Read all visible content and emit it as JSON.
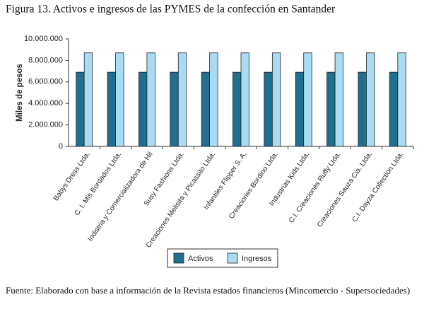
{
  "chart_data": {
    "type": "bar",
    "title": "Figura 13. Activos e ingresos de las PYMES de la confección en Santander",
    "y_label": "Miles de pesos",
    "categories": [
      "Babys Dress Ltda.",
      "C. I. Mis Bordados Ltda.",
      "Indistria y Comercializadora de Hil",
      "Susy Fashions Ltda.",
      "Creaciones Melisita y Picassito Ltda.",
      "Infantiles Flipper S. A.",
      "Creaciones Bordino Ltda.",
      "Industrias Kids Ltda.",
      "C.I. Creaciones Ruffy Ltda.",
      "Creaciones Sauza Cia. Ltda.",
      "C.I. Dayza Collection Ltda."
    ],
    "series": [
      {
        "name": "Activos",
        "color": "#1f6f8f",
        "values": [
          6900000,
          6900000,
          6900000,
          6900000,
          6900000,
          6900000,
          6900000,
          6900000,
          6900000,
          6900000,
          6900000
        ]
      },
      {
        "name": "Ingresos",
        "color": "#a9dcf2",
        "values": [
          8700000,
          8700000,
          8700000,
          8700000,
          8700000,
          8700000,
          8700000,
          8700000,
          8700000,
          8700000,
          8700000
        ]
      }
    ],
    "ylim": [
      0,
      10000000
    ],
    "yticks": [
      0,
      {
        "value": 2000000,
        "label": "2.000.000"
      },
      {
        "value": 4000000,
        "label": "4.000.000"
      },
      {
        "value": 6000000,
        "label": "6.000.000"
      },
      {
        "value": 8000000,
        "label": "8.000.000"
      },
      {
        "value": 10000000,
        "label": "10.000.000"
      }
    ],
    "legend": "bottom",
    "source": "Fuente: Elaborado con base a información de la Revista estados financieros (Mincomercio - Supersociedades)"
  }
}
